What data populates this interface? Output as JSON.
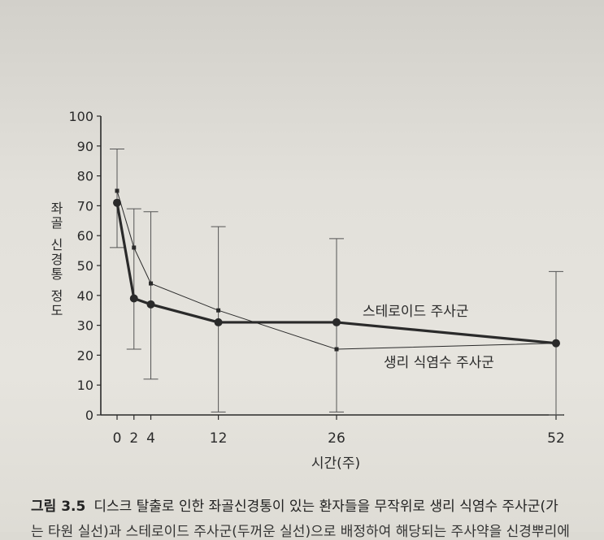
{
  "chart_data": {
    "type": "line",
    "xlabel": "시간(주)",
    "ylabel": "좌골 신경통 정도",
    "xlim": [
      0,
      52
    ],
    "ylim": [
      0,
      100
    ],
    "x_ticks": [
      0,
      2,
      4,
      12,
      26,
      52
    ],
    "y_ticks": [
      0,
      10,
      20,
      30,
      40,
      50,
      60,
      70,
      80,
      90,
      100
    ],
    "grid": false,
    "series": [
      {
        "name": "스테로이드 주사군",
        "style": "thick line, filled circle markers",
        "color": "#2a2a2a",
        "points": [
          {
            "x": 0,
            "y": 71,
            "err_low": 56,
            "err_high": 89
          },
          {
            "x": 2,
            "y": 39,
            "err_low": 22,
            "err_high": 69
          },
          {
            "x": 4,
            "y": 37,
            "err_low": 12,
            "err_high": 68
          },
          {
            "x": 12,
            "y": 31,
            "err_low": 1,
            "err_high": 63
          },
          {
            "x": 26,
            "y": 31,
            "err_low": 1,
            "err_high": 59
          },
          {
            "x": 52,
            "y": 24,
            "err_low": 0,
            "err_high": 48
          }
        ]
      },
      {
        "name": "생리 식염수 주사군",
        "style": "thin line, small square markers",
        "color": "#2a2a2a",
        "points": [
          {
            "x": 0,
            "y": 75
          },
          {
            "x": 2,
            "y": 56
          },
          {
            "x": 4,
            "y": 44
          },
          {
            "x": 12,
            "y": 35
          },
          {
            "x": 26,
            "y": 22
          },
          {
            "x": 52,
            "y": 24
          }
        ]
      }
    ]
  },
  "caption": {
    "figure_label": "그림 3.5",
    "text": "디스크 탈출로 인한 좌골신경통이 있는 환자들을 무작위로 생리 식염수 주사군(가",
    "continuation": "는 타원 실선)과 스테로이드 주사군(두꺼운 실선)으로 배정하여 해당되는 주사약을 신경뿌리에"
  }
}
